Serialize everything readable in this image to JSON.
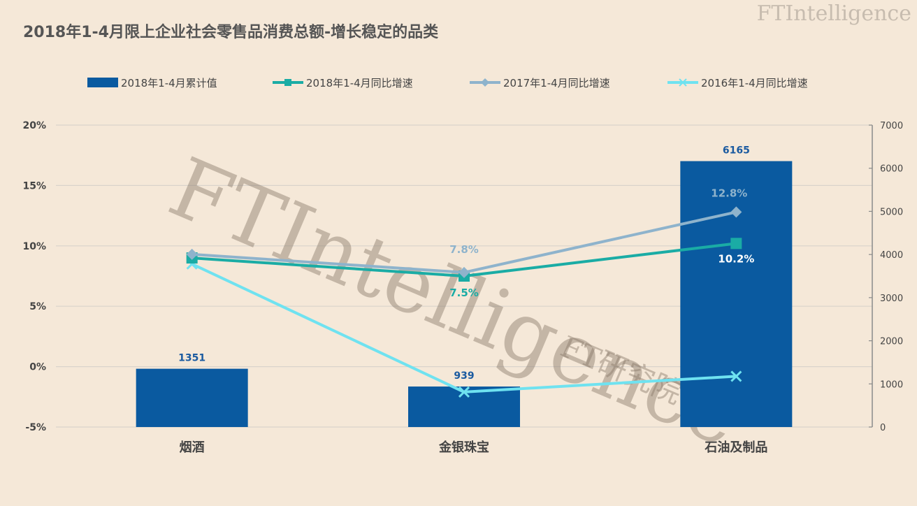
{
  "title": "2018年1-4月限上企业社会零售品消费总额-增长稳定的品类",
  "brand": {
    "name": "FTIntelligence",
    "sub": "FT研究院"
  },
  "watermark": {
    "main": "FTIntelligence",
    "sub": "FT研究院"
  },
  "colors": {
    "bar": "#0a5aa0",
    "s2018": "#1aaca5",
    "s2017": "#8eb3cc",
    "s2016": "#6fe2f0",
    "background": "#f5e8d8",
    "grid": "#d9d3cb"
  },
  "chart_data": {
    "type": "bar",
    "categories": [
      "烟酒",
      "金银珠宝",
      "石油及制品"
    ],
    "series": [
      {
        "name": "2018年1-4月累计值",
        "type": "bar",
        "axis": "right",
        "values": [
          1351,
          939,
          6165
        ],
        "labels": [
          "1351",
          "939",
          "6165"
        ]
      },
      {
        "name": "2018年1-4月同比增速",
        "type": "line",
        "axis": "left",
        "marker": "square",
        "values": [
          9.0,
          7.5,
          10.2
        ],
        "labels": [
          "",
          "7.5%",
          "10.2%"
        ]
      },
      {
        "name": "2017年1-4月同比增速",
        "type": "line",
        "axis": "left",
        "marker": "diamond",
        "values": [
          9.3,
          7.8,
          12.8
        ],
        "labels": [
          "",
          "7.8%",
          "12.8%"
        ]
      },
      {
        "name": "2016年1-4月同比增速",
        "type": "line",
        "axis": "left",
        "marker": "x",
        "values": [
          8.5,
          -2.1,
          -0.8
        ],
        "labels": [
          "",
          "",
          ""
        ]
      }
    ],
    "y_left": {
      "min": -5,
      "max": 20,
      "ticks": [
        "-5%",
        "0%",
        "5%",
        "10%",
        "15%",
        "20%"
      ],
      "values": [
        -5,
        0,
        5,
        10,
        15,
        20
      ]
    },
    "y_right": {
      "min": 0,
      "max": 7000,
      "ticks": [
        "0",
        "1000",
        "2000",
        "3000",
        "4000",
        "5000",
        "6000",
        "7000"
      ],
      "values": [
        0,
        1000,
        2000,
        3000,
        4000,
        5000,
        6000,
        7000
      ]
    },
    "grid": true,
    "legend_position": "top"
  }
}
